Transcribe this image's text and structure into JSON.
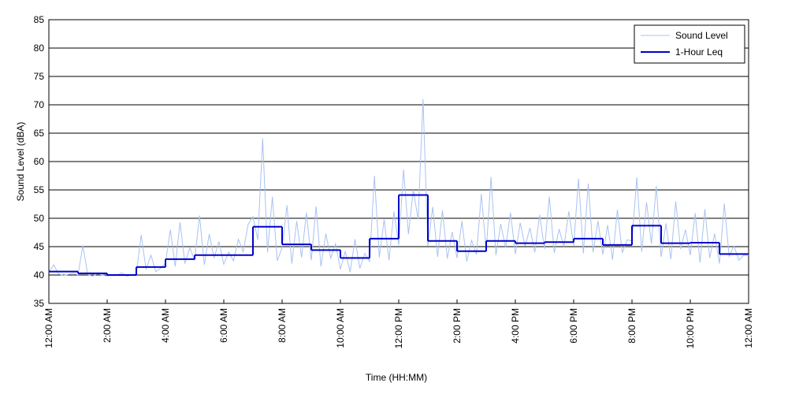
{
  "chart_data": {
    "type": "line",
    "xlabel": "Time (HH:MM)",
    "ylabel": "Sound Level (dBA)",
    "xlim": [
      0,
      1440
    ],
    "ylim": [
      35,
      85
    ],
    "xticks": [
      {
        "value": 0,
        "label": "12:00 AM"
      },
      {
        "value": 120,
        "label": "2:00 AM"
      },
      {
        "value": 240,
        "label": "4:00 AM"
      },
      {
        "value": 360,
        "label": "6:00 AM"
      },
      {
        "value": 480,
        "label": "8:00 AM"
      },
      {
        "value": 600,
        "label": "10:00 AM"
      },
      {
        "value": 720,
        "label": "12:00 PM"
      },
      {
        "value": 840,
        "label": "2:00 PM"
      },
      {
        "value": 960,
        "label": "4:00 PM"
      },
      {
        "value": 1080,
        "label": "6:00 PM"
      },
      {
        "value": 1200,
        "label": "8:00 PM"
      },
      {
        "value": 1320,
        "label": "10:00 PM"
      },
      {
        "value": 1440,
        "label": "12:00 AM"
      }
    ],
    "yticks": [
      35,
      40,
      45,
      50,
      55,
      60,
      65,
      70,
      75,
      80,
      85
    ],
    "grid": true,
    "legend": "top-right",
    "series": [
      {
        "name": "Sound Level",
        "color": "#a9c2f2",
        "step": false,
        "x": [
          0,
          10,
          20,
          30,
          40,
          50,
          60,
          70,
          80,
          90,
          100,
          110,
          120,
          130,
          140,
          150,
          160,
          170,
          180,
          190,
          200,
          210,
          220,
          230,
          240,
          250,
          260,
          270,
          280,
          290,
          300,
          310,
          320,
          330,
          340,
          350,
          360,
          370,
          380,
          390,
          400,
          410,
          420,
          430,
          440,
          450,
          460,
          470,
          480,
          490,
          500,
          510,
          520,
          530,
          540,
          550,
          560,
          570,
          580,
          590,
          600,
          610,
          620,
          630,
          640,
          650,
          660,
          670,
          680,
          690,
          700,
          710,
          720,
          730,
          740,
          750,
          760,
          770,
          780,
          790,
          800,
          810,
          820,
          830,
          840,
          850,
          860,
          870,
          880,
          890,
          900,
          910,
          920,
          930,
          940,
          950,
          960,
          970,
          980,
          990,
          1000,
          1010,
          1020,
          1030,
          1040,
          1050,
          1060,
          1070,
          1080,
          1090,
          1100,
          1110,
          1120,
          1130,
          1140,
          1150,
          1160,
          1170,
          1180,
          1190,
          1200,
          1210,
          1220,
          1230,
          1240,
          1250,
          1260,
          1270,
          1280,
          1290,
          1300,
          1310,
          1320,
          1330,
          1340,
          1350,
          1360,
          1370,
          1380,
          1390,
          1400,
          1410,
          1420,
          1430,
          1440
        ],
        "values": [
          40.5,
          41.8,
          40.2,
          39.9,
          40.1,
          40.3,
          40.0,
          45.2,
          40.1,
          39.8,
          40.2,
          40.0,
          39.8,
          40.1,
          39.9,
          40.4,
          39.8,
          40.0,
          40.2,
          47.1,
          41.0,
          43.5,
          40.6,
          41.2,
          42.1,
          48.0,
          41.5,
          49.3,
          42.0,
          44.8,
          42.6,
          50.5,
          41.8,
          47.2,
          43.0,
          45.9,
          41.9,
          44.0,
          42.5,
          46.3,
          44.1,
          48.9,
          50.3,
          46.2,
          64.1,
          44.0,
          53.8,
          42.5,
          44.8,
          52.3,
          42.0,
          49.5,
          43.1,
          51.0,
          42.6,
          52.1,
          41.5,
          47.3,
          43.0,
          45.5,
          41.0,
          44.2,
          40.5,
          46.3,
          41.2,
          43.8,
          42.4,
          57.5,
          43.1,
          49.8,
          42.6,
          51.2,
          45.3,
          58.6,
          47.2,
          55.0,
          49.8,
          71.0,
          45.1,
          52.0,
          43.2,
          51.4,
          42.9,
          47.6,
          43.0,
          49.5,
          42.4,
          46.1,
          43.6,
          54.3,
          44.2,
          57.3,
          43.5,
          49.0,
          44.8,
          51.0,
          43.7,
          49.2,
          45.1,
          48.3,
          44.0,
          50.6,
          44.6,
          53.8,
          43.9,
          48.1,
          45.0,
          51.2,
          45.2,
          57.0,
          43.8,
          56.1,
          44.0,
          49.5,
          43.6,
          48.8,
          42.7,
          51.5,
          43.9,
          46.2,
          46.0,
          57.2,
          44.1,
          52.8,
          45.5,
          55.7,
          43.2,
          49.1,
          42.8,
          53.0,
          44.6,
          48.0,
          43.5,
          50.9,
          42.2,
          51.6,
          43.0,
          47.3,
          42.0,
          52.6,
          43.3,
          45.1,
          42.6,
          43.5,
          43.4
        ]
      },
      {
        "name": "1-Hour Leq",
        "color": "#0000cc",
        "step": true,
        "x": [
          0,
          60,
          120,
          180,
          240,
          300,
          360,
          420,
          480,
          540,
          600,
          660,
          720,
          780,
          840,
          900,
          960,
          1020,
          1080,
          1140,
          1200,
          1260,
          1320,
          1380
        ],
        "values": [
          40.6,
          40.3,
          40.0,
          41.4,
          42.8,
          43.5,
          43.5,
          48.5,
          45.4,
          44.4,
          43.0,
          46.4,
          54.1,
          46.0,
          44.2,
          46.0,
          45.6,
          45.8,
          46.4,
          45.3,
          48.7,
          45.6,
          45.7,
          43.7
        ]
      }
    ]
  }
}
